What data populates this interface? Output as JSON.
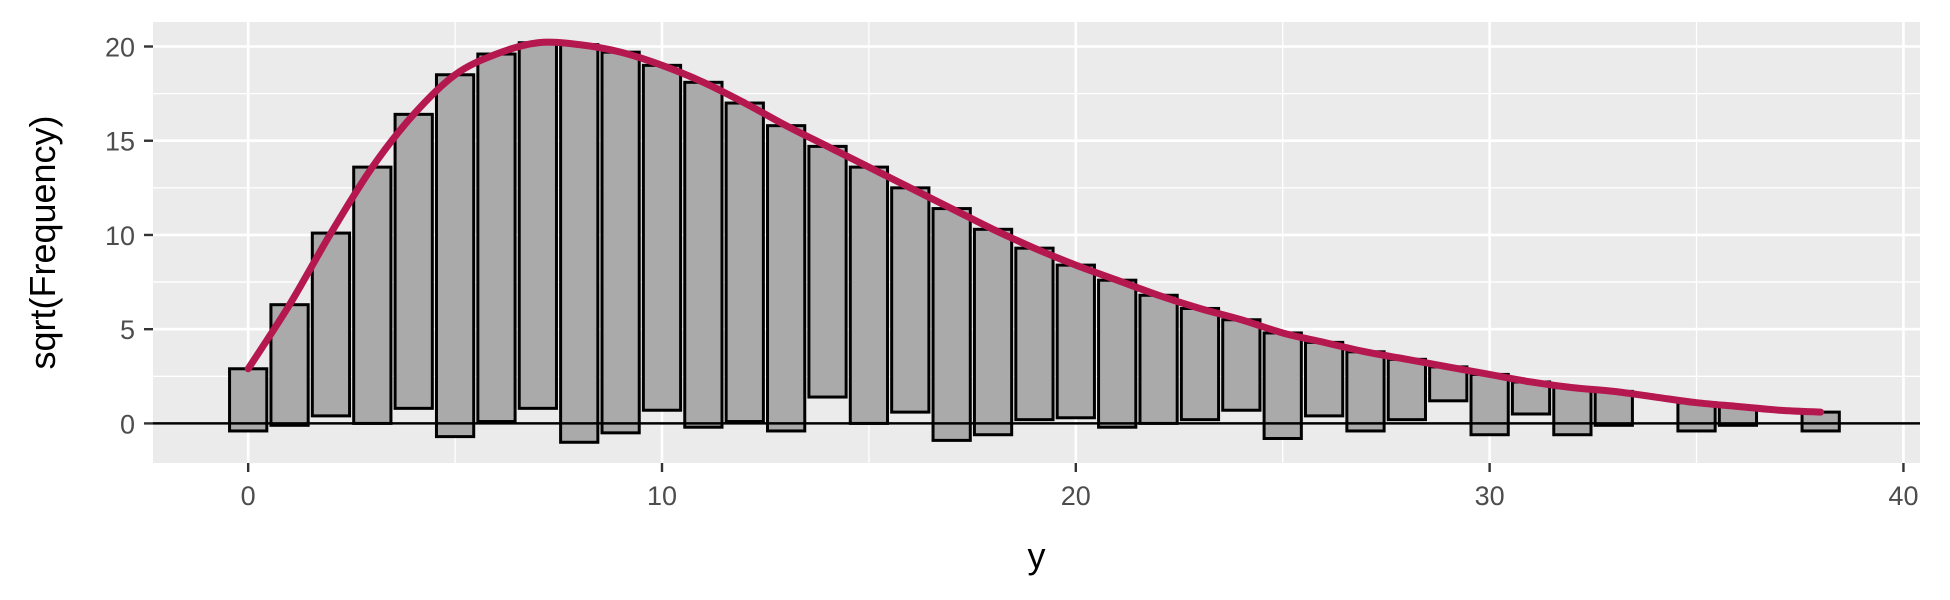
{
  "chart_data": {
    "type": "bar",
    "subtype": "hanging-rootogram",
    "title": "",
    "xlabel": "y",
    "ylabel": "sqrt(Frequency)",
    "xlim": [
      -2.3,
      40.4
    ],
    "ylim": [
      -2.1,
      21.3
    ],
    "x_ticks": [
      0,
      10,
      20,
      30,
      40
    ],
    "y_ticks": [
      0,
      5,
      10,
      15,
      20
    ],
    "grid": true,
    "legend": "none",
    "colors": {
      "panel_background": "#ebebeb",
      "grid": "#ffffff",
      "bar_fill": "#aaaaaa",
      "bar_stroke": "#000000",
      "curve": "#b5174f",
      "reference_line": "#000000"
    },
    "bars": [
      {
        "x": 0,
        "top": 2.9,
        "bottom": -0.4
      },
      {
        "x": 1,
        "top": 6.3,
        "bottom": -0.1
      },
      {
        "x": 2,
        "top": 10.1,
        "bottom": 0.4
      },
      {
        "x": 3,
        "top": 13.6,
        "bottom": 0.0
      },
      {
        "x": 4,
        "top": 16.4,
        "bottom": 0.8
      },
      {
        "x": 5,
        "top": 18.5,
        "bottom": -0.7
      },
      {
        "x": 6,
        "top": 19.6,
        "bottom": 0.1
      },
      {
        "x": 7,
        "top": 20.2,
        "bottom": 0.8
      },
      {
        "x": 8,
        "top": 20.1,
        "bottom": -1.0
      },
      {
        "x": 9,
        "top": 19.7,
        "bottom": -0.5
      },
      {
        "x": 10,
        "top": 19.0,
        "bottom": 0.7
      },
      {
        "x": 11,
        "top": 18.1,
        "bottom": -0.2
      },
      {
        "x": 12,
        "top": 17.0,
        "bottom": 0.1
      },
      {
        "x": 13,
        "top": 15.8,
        "bottom": -0.4
      },
      {
        "x": 14,
        "top": 14.7,
        "bottom": 1.4
      },
      {
        "x": 15,
        "top": 13.6,
        "bottom": 0.0
      },
      {
        "x": 16,
        "top": 12.5,
        "bottom": 0.6
      },
      {
        "x": 17,
        "top": 11.4,
        "bottom": -0.9
      },
      {
        "x": 18,
        "top": 10.3,
        "bottom": -0.6
      },
      {
        "x": 19,
        "top": 9.3,
        "bottom": 0.2
      },
      {
        "x": 20,
        "top": 8.4,
        "bottom": 0.3
      },
      {
        "x": 21,
        "top": 7.6,
        "bottom": -0.2
      },
      {
        "x": 22,
        "top": 6.8,
        "bottom": 0.0
      },
      {
        "x": 23,
        "top": 6.1,
        "bottom": 0.2
      },
      {
        "x": 24,
        "top": 5.5,
        "bottom": 0.7
      },
      {
        "x": 25,
        "top": 4.8,
        "bottom": -0.8
      },
      {
        "x": 26,
        "top": 4.3,
        "bottom": 0.4
      },
      {
        "x": 27,
        "top": 3.8,
        "bottom": -0.4
      },
      {
        "x": 28,
        "top": 3.4,
        "bottom": 0.2
      },
      {
        "x": 29,
        "top": 3.0,
        "bottom": 1.2
      },
      {
        "x": 30,
        "top": 2.6,
        "bottom": -0.6
      },
      {
        "x": 31,
        "top": 2.2,
        "bottom": 0.5
      },
      {
        "x": 32,
        "top": 1.9,
        "bottom": -0.6
      },
      {
        "x": 33,
        "top": 1.7,
        "bottom": -0.1
      },
      {
        "x": 35,
        "top": 1.1,
        "bottom": -0.4
      },
      {
        "x": 36,
        "top": 0.9,
        "bottom": -0.1
      },
      {
        "x": 38,
        "top": 0.6,
        "bottom": -0.4
      }
    ],
    "curve": {
      "x": [
        0,
        1,
        2,
        3,
        4,
        5,
        6,
        7,
        8,
        9,
        10,
        11,
        12,
        13,
        14,
        15,
        16,
        17,
        18,
        19,
        20,
        21,
        22,
        23,
        24,
        25,
        26,
        27,
        28,
        29,
        30,
        31,
        32,
        33,
        34,
        35,
        36,
        37,
        38
      ],
      "y": [
        2.9,
        6.3,
        10.1,
        13.6,
        16.4,
        18.5,
        19.6,
        20.2,
        20.1,
        19.7,
        19.0,
        18.1,
        17.0,
        15.8,
        14.7,
        13.6,
        12.5,
        11.4,
        10.3,
        9.3,
        8.4,
        7.6,
        6.8,
        6.1,
        5.5,
        4.8,
        4.3,
        3.8,
        3.4,
        3.0,
        2.6,
        2.2,
        1.9,
        1.7,
        1.4,
        1.1,
        0.9,
        0.7,
        0.6
      ]
    },
    "reference_line_y": 0
  }
}
